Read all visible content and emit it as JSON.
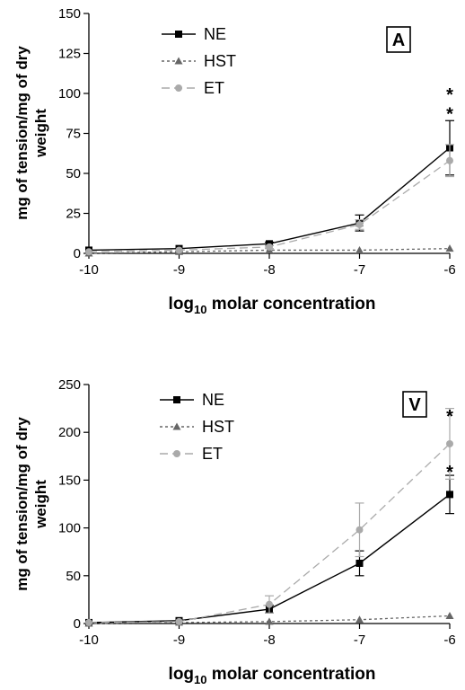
{
  "chart_data": [
    {
      "type": "line",
      "panel_label": "A",
      "ylabel_line1": "mg of tension/mg of dry",
      "ylabel_line2": "weight",
      "xlabel_main": "log",
      "xlabel_sub": "10",
      "xlabel_rest": " molar concentration",
      "x": [
        -10,
        -9,
        -8,
        -7,
        -6
      ],
      "xlim": [
        -10,
        -6
      ],
      "ylim": [
        0,
        150
      ],
      "yticks": [
        0,
        25,
        50,
        75,
        100,
        125,
        150
      ],
      "xticks": [
        -10,
        -9,
        -8,
        -7,
        -6
      ],
      "legend_placement": "top-left",
      "series": [
        {
          "name": "NE",
          "values": [
            2,
            3,
            6,
            19,
            66
          ],
          "errors": [
            0,
            0,
            1,
            5,
            17
          ],
          "color": "#000000",
          "marker": "square",
          "dash": ""
        },
        {
          "name": "HST",
          "values": [
            0,
            1,
            2,
            2,
            3
          ],
          "errors": [
            0,
            0,
            0,
            0,
            0
          ],
          "color": "#666666",
          "marker": "triangle",
          "dash": "3,3"
        },
        {
          "name": "ET",
          "values": [
            1,
            2,
            4,
            18,
            58
          ],
          "errors": [
            0,
            0,
            1,
            3,
            10
          ],
          "color": "#aaaaaa",
          "marker": "circle",
          "dash": "9,5"
        }
      ],
      "annotations": [
        {
          "text": "*",
          "x": -6,
          "y": 100
        },
        {
          "text": "*",
          "x": -6,
          "y": 88
        }
      ]
    },
    {
      "type": "line",
      "panel_label": "V",
      "ylabel_line1": "mg of tension/mg of dry",
      "ylabel_line2": "weight",
      "xlabel_main": "log",
      "xlabel_sub": "10",
      "xlabel_rest": " molar concentration",
      "x": [
        -10,
        -9,
        -8,
        -7,
        -6
      ],
      "xlim": [
        -10,
        -6
      ],
      "ylim": [
        0,
        250
      ],
      "yticks": [
        0,
        50,
        100,
        150,
        200,
        250
      ],
      "xticks": [
        -10,
        -9,
        -8,
        -7,
        -6
      ],
      "legend_placement": "top-left",
      "series": [
        {
          "name": "NE",
          "values": [
            1,
            3,
            15,
            63,
            135
          ],
          "errors": [
            0,
            0,
            4,
            13,
            20
          ],
          "color": "#000000",
          "marker": "square",
          "dash": ""
        },
        {
          "name": "HST",
          "values": [
            0,
            1,
            2,
            4,
            8
          ],
          "errors": [
            0,
            0,
            0,
            0,
            0
          ],
          "color": "#666666",
          "marker": "triangle",
          "dash": "3,3"
        },
        {
          "name": "ET",
          "values": [
            1,
            2,
            20,
            98,
            188
          ],
          "errors": [
            0,
            0,
            9,
            28,
            37
          ],
          "color": "#aaaaaa",
          "marker": "circle",
          "dash": "9,5"
        }
      ],
      "annotations": [
        {
          "text": "*",
          "x": -6,
          "y": 218
        },
        {
          "text": "*",
          "x": -6,
          "y": 160
        }
      ]
    }
  ]
}
